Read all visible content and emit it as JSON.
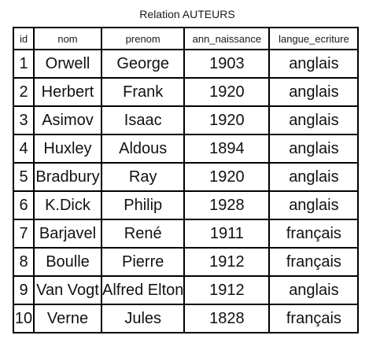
{
  "caption": "Relation AUTEURS",
  "columns": {
    "id": "id",
    "nom": "nom",
    "prenom": "prenom",
    "ann_naissance": "ann_naissance",
    "langue_ecriture": "langue_ecriture"
  },
  "rows": [
    {
      "id": "1",
      "nom": "Orwell",
      "prenom": "George",
      "ann_naissance": "1903",
      "langue_ecriture": "anglais"
    },
    {
      "id": "2",
      "nom": "Herbert",
      "prenom": "Frank",
      "ann_naissance": "1920",
      "langue_ecriture": "anglais"
    },
    {
      "id": "3",
      "nom": "Asimov",
      "prenom": "Isaac",
      "ann_naissance": "1920",
      "langue_ecriture": "anglais"
    },
    {
      "id": "4",
      "nom": "Huxley",
      "prenom": "Aldous",
      "ann_naissance": "1894",
      "langue_ecriture": "anglais"
    },
    {
      "id": "5",
      "nom": "Bradbury",
      "prenom": "Ray",
      "ann_naissance": "1920",
      "langue_ecriture": "anglais"
    },
    {
      "id": "6",
      "nom": "K.Dick",
      "prenom": "Philip",
      "ann_naissance": "1928",
      "langue_ecriture": "anglais"
    },
    {
      "id": "7",
      "nom": "Barjavel",
      "prenom": "René",
      "ann_naissance": "1911",
      "langue_ecriture": "français"
    },
    {
      "id": "8",
      "nom": "Boulle",
      "prenom": "Pierre",
      "ann_naissance": "1912",
      "langue_ecriture": "français"
    },
    {
      "id": "9",
      "nom": "Van Vogt",
      "prenom": "Alfred Elton",
      "ann_naissance": "1912",
      "langue_ecriture": "anglais"
    },
    {
      "id": "10",
      "nom": "Verne",
      "prenom": "Jules",
      "ann_naissance": "1828",
      "langue_ecriture": "français"
    }
  ]
}
